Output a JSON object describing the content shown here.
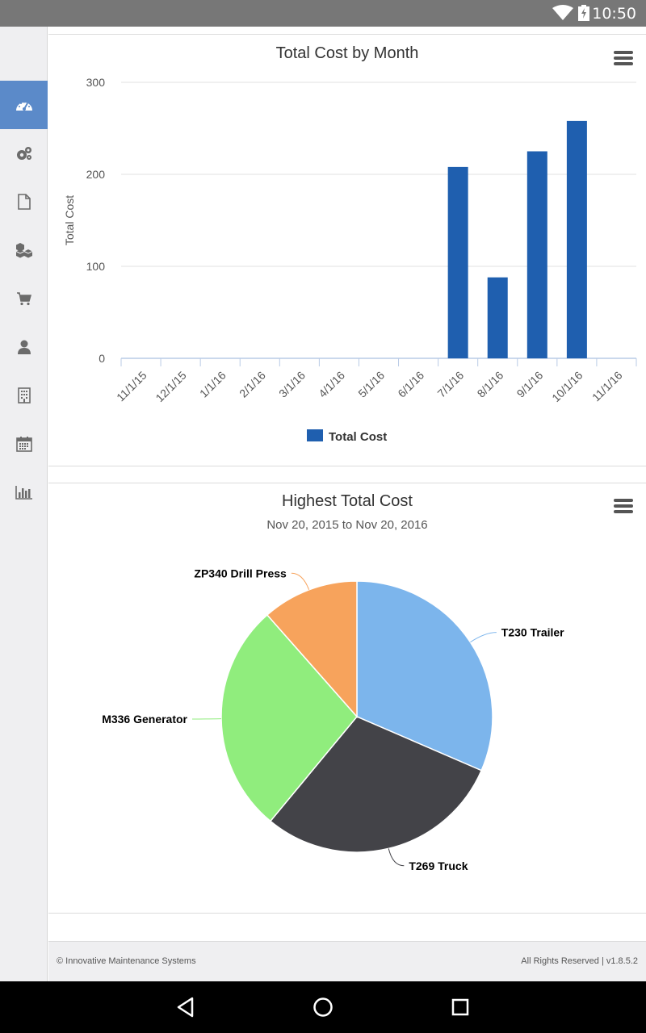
{
  "status_bar": {
    "time": "10:50"
  },
  "sidebar": {
    "items": [
      {
        "icon": "dashboard-icon",
        "active": true
      },
      {
        "icon": "gears-icon",
        "active": false
      },
      {
        "icon": "document-icon",
        "active": false
      },
      {
        "icon": "boxes-icon",
        "active": false
      },
      {
        "icon": "cart-icon",
        "active": false
      },
      {
        "icon": "user-icon",
        "active": false
      },
      {
        "icon": "building-icon",
        "active": false
      },
      {
        "icon": "calendar-icon",
        "active": false
      },
      {
        "icon": "bar-chart-icon",
        "active": false
      }
    ],
    "active_color": "#5b8ac9"
  },
  "chart_data": [
    {
      "type": "bar",
      "title": "Total Cost by Month",
      "xlabel": "",
      "ylabel": "Total Cost",
      "ylim": [
        0,
        300
      ],
      "yticks": [
        0,
        100,
        200,
        300
      ],
      "categories": [
        "11/1/15",
        "12/1/15",
        "1/1/16",
        "2/1/16",
        "3/1/16",
        "4/1/16",
        "5/1/16",
        "6/1/16",
        "7/1/16",
        "8/1/16",
        "9/1/16",
        "10/1/16",
        "11/1/16"
      ],
      "series": [
        {
          "name": "Total Cost",
          "color": "#1f5faf",
          "values": [
            0,
            0,
            0,
            0,
            0,
            0,
            0,
            0,
            208,
            88,
            225,
            258,
            0
          ]
        }
      ],
      "grid": true,
      "legend": "bottom-center"
    },
    {
      "type": "pie",
      "title": "Highest Total Cost",
      "subtitle": "Nov 20, 2015 to Nov 20, 2016",
      "slices": [
        {
          "label": "T230 Trailer",
          "value": 31.5,
          "color": "#7cb5ec"
        },
        {
          "label": "T269 Truck",
          "value": 29.5,
          "color": "#434348"
        },
        {
          "label": "M336 Generator",
          "value": 27.5,
          "color": "#90ed7d"
        },
        {
          "label": "ZP340 Drill Press",
          "value": 11.5,
          "color": "#f7a35c"
        }
      ]
    }
  ],
  "footer": {
    "left": "© Innovative Maintenance Systems",
    "right": "All Rights Reserved | v1.8.5.2"
  }
}
